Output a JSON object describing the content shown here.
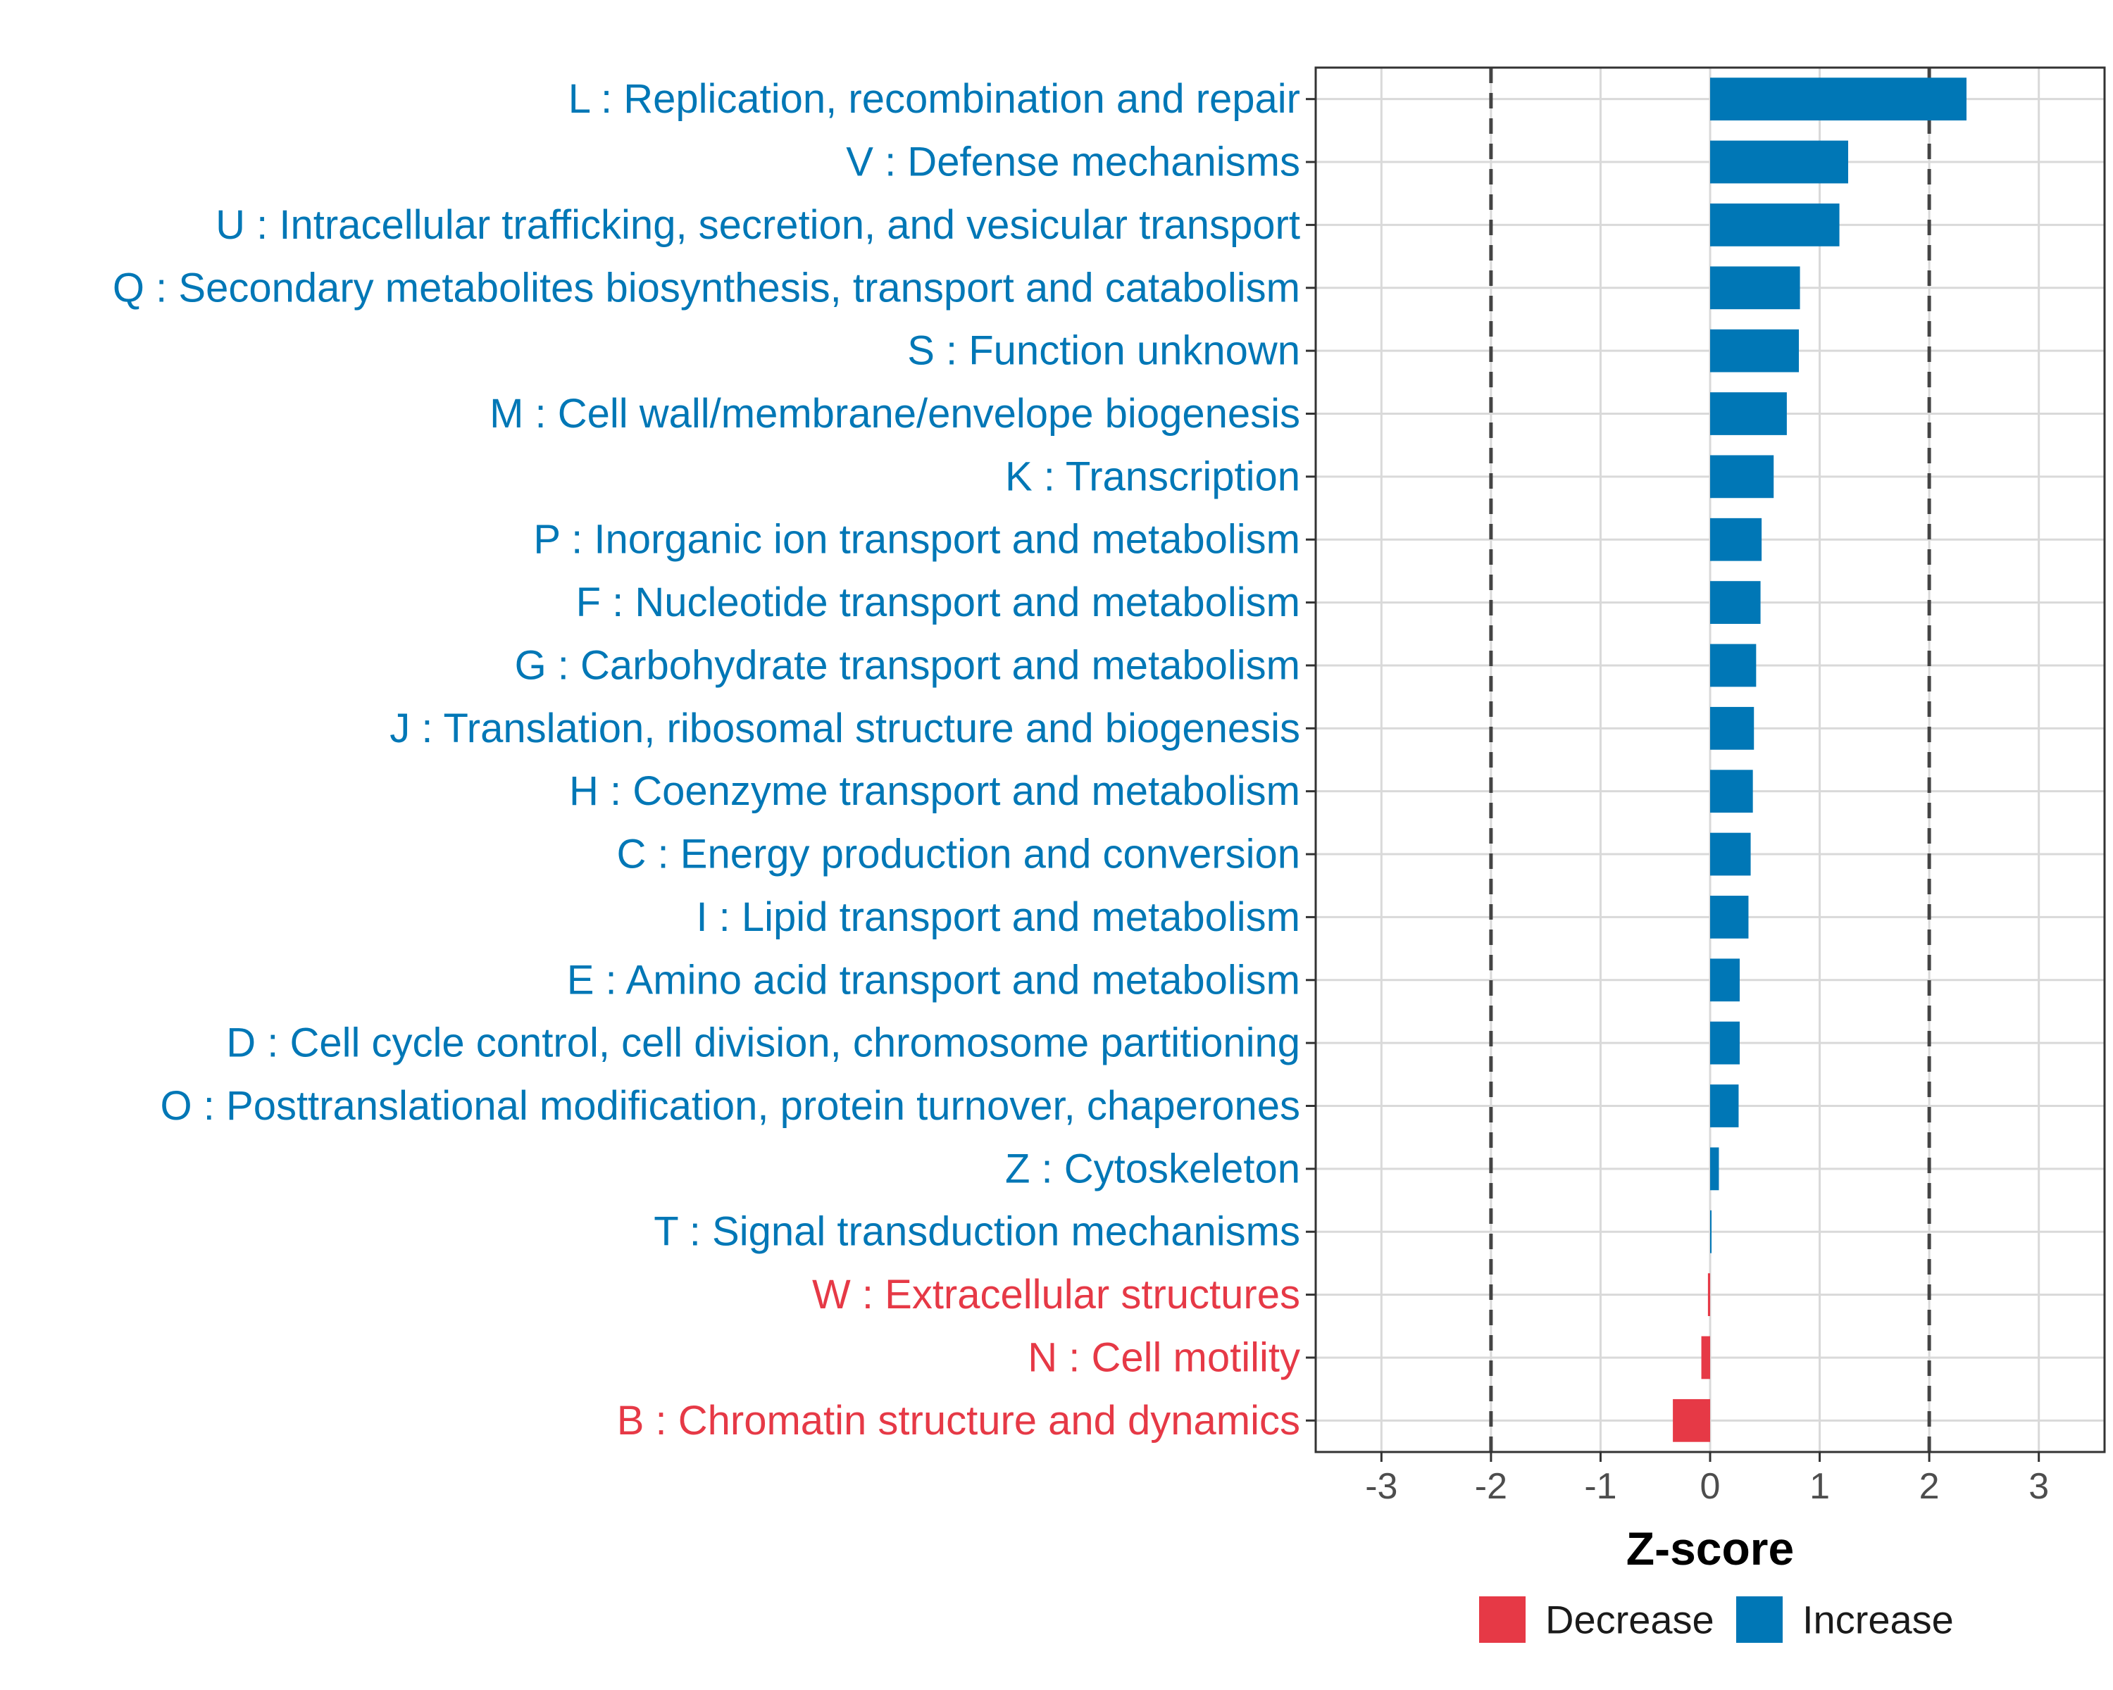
{
  "chart_data": {
    "type": "bar",
    "orientation": "horizontal",
    "title": "",
    "xlabel": "Z-score",
    "ylabel": "",
    "xlim": [
      -3.6,
      3.6
    ],
    "xticks": [
      -3,
      -2,
      -1,
      0,
      1,
      2,
      3
    ],
    "xtick_labels": [
      "-3",
      "-2",
      "-1",
      "0",
      "1",
      "2",
      "3"
    ],
    "reference_lines": [
      -2,
      2
    ],
    "categories": [
      "L : Replication, recombination and repair",
      "V : Defense mechanisms",
      "U : Intracellular trafficking, secretion, and vesicular transport",
      "Q : Secondary metabolites biosynthesis, transport and catabolism",
      "S : Function unknown",
      "M : Cell wall/membrane/envelope biogenesis",
      "K : Transcription",
      "P : Inorganic ion transport and metabolism",
      "F : Nucleotide transport and metabolism",
      "G : Carbohydrate transport and metabolism",
      "J : Translation, ribosomal structure and biogenesis",
      "H : Coenzyme transport and metabolism",
      "C : Energy production and conversion",
      "I : Lipid transport and metabolism",
      "E : Amino acid transport and metabolism",
      "D : Cell cycle control, cell division, chromosome partitioning",
      "O : Posttranslational modification, protein turnover, chaperones",
      "Z : Cytoskeleton",
      "T : Signal transduction mechanisms",
      "W : Extracellular structures",
      "N : Cell motility",
      "B : Chromatin structure and dynamics"
    ],
    "values": [
      2.34,
      1.26,
      1.18,
      0.82,
      0.81,
      0.7,
      0.58,
      0.47,
      0.46,
      0.42,
      0.4,
      0.39,
      0.37,
      0.35,
      0.27,
      0.27,
      0.26,
      0.08,
      0.01,
      -0.02,
      -0.08,
      -0.34
    ],
    "groups": [
      "Increase",
      "Increase",
      "Increase",
      "Increase",
      "Increase",
      "Increase",
      "Increase",
      "Increase",
      "Increase",
      "Increase",
      "Increase",
      "Increase",
      "Increase",
      "Increase",
      "Increase",
      "Increase",
      "Increase",
      "Increase",
      "Increase",
      "Decrease",
      "Decrease",
      "Decrease"
    ],
    "legend": [
      {
        "label": "Decrease",
        "color": "#E63946"
      },
      {
        "label": "Increase",
        "color": "#0077B6"
      }
    ],
    "legend_position": "bottom",
    "grid": true
  }
}
